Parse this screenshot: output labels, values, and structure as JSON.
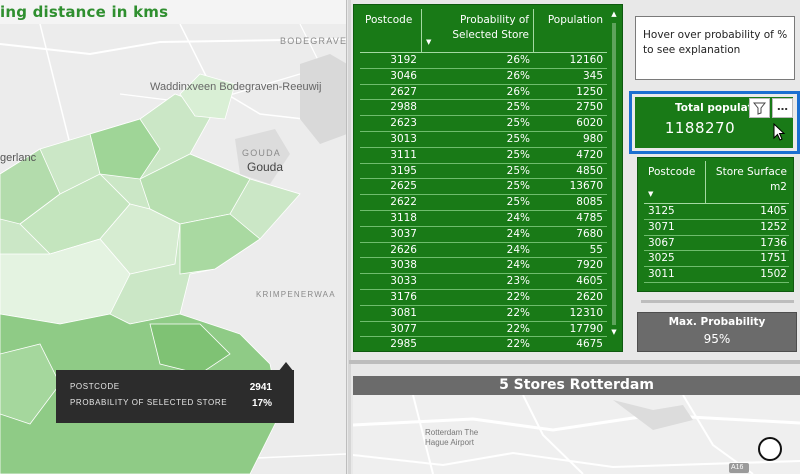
{
  "map": {
    "title": "ing distance in kms",
    "labels": {
      "bodegraven": "BODEGRAVE",
      "waddinxveen": "Waddinxveen Bodegraven-Reeuwij",
      "gerlanc": "gerlanc",
      "gouda_caps": "GOUDA",
      "gouda": "Gouda",
      "krimpenerwaa": "KRIMPENERWAA"
    },
    "tooltip": {
      "postcode_label": "POSTCODE",
      "postcode_value": "2941",
      "prob_label": "PROBABILITY OF SELECTED STORE",
      "prob_value": "17%"
    }
  },
  "center_table": {
    "headers": {
      "postcode": "Postcode",
      "probability_line1": "Probability of",
      "probability_line2": "Selected Store",
      "population": "Population"
    },
    "sort_indicator": "▼",
    "rows": [
      {
        "postcode": "3192",
        "probability": "26%",
        "population": "12160"
      },
      {
        "postcode": "3046",
        "probability": "26%",
        "population": "345"
      },
      {
        "postcode": "2627",
        "probability": "26%",
        "population": "1250"
      },
      {
        "postcode": "2988",
        "probability": "25%",
        "population": "2750"
      },
      {
        "postcode": "2623",
        "probability": "25%",
        "population": "6020"
      },
      {
        "postcode": "3013",
        "probability": "25%",
        "population": "980"
      },
      {
        "postcode": "3111",
        "probability": "25%",
        "population": "4720"
      },
      {
        "postcode": "3195",
        "probability": "25%",
        "population": "4850"
      },
      {
        "postcode": "2625",
        "probability": "25%",
        "population": "13670"
      },
      {
        "postcode": "2622",
        "probability": "25%",
        "population": "8085"
      },
      {
        "postcode": "3118",
        "probability": "24%",
        "population": "4785"
      },
      {
        "postcode": "3037",
        "probability": "24%",
        "population": "7680"
      },
      {
        "postcode": "2626",
        "probability": "24%",
        "population": "55"
      },
      {
        "postcode": "3038",
        "probability": "24%",
        "population": "7920"
      },
      {
        "postcode": "3033",
        "probability": "23%",
        "population": "4605"
      },
      {
        "postcode": "3176",
        "probability": "22%",
        "population": "2620"
      },
      {
        "postcode": "3081",
        "probability": "22%",
        "population": "12310"
      },
      {
        "postcode": "3077",
        "probability": "22%",
        "population": "17790"
      },
      {
        "postcode": "2985",
        "probability": "22%",
        "population": "4675"
      }
    ]
  },
  "hover_note": {
    "line1": "Hover over probability of %",
    "line2": "to see explanation"
  },
  "kpi": {
    "title": "Total populat",
    "value": "1188270",
    "more_label": "…"
  },
  "small_table": {
    "headers": {
      "postcode": "Postcode",
      "surface_line1": "Store Surface",
      "surface_line2": "m2"
    },
    "sort_indicator": "▼",
    "rows": [
      {
        "postcode": "3125",
        "surface": "1405"
      },
      {
        "postcode": "3071",
        "surface": "1252"
      },
      {
        "postcode": "3067",
        "surface": "1736"
      },
      {
        "postcode": "3025",
        "surface": "1751"
      },
      {
        "postcode": "3011",
        "surface": "1502"
      }
    ]
  },
  "max_probability": {
    "title": "Max. Probability",
    "value": "95%"
  },
  "rotterdam": {
    "title": "5 Stores Rotterdam",
    "airport_line1": "Rotterdam The",
    "airport_line2": "Hague Airport",
    "road_label": "A16"
  },
  "colors": {
    "table_green": "#197a17",
    "title_green": "#2f8f2f",
    "selection_blue": "#1b6fd1",
    "dark_gray": "#6b6b6b"
  }
}
